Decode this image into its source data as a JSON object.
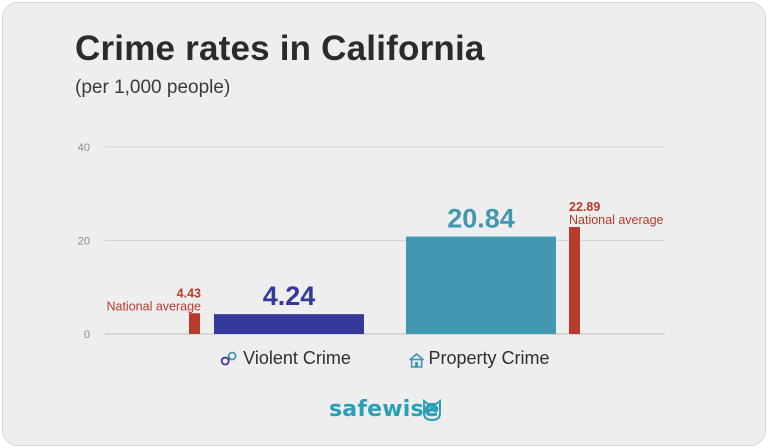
{
  "page": {
    "title": "Crime rates in California",
    "subtitle": "(per 1,000 people)",
    "brand": {
      "name": "safewise",
      "logo_icon": "owl-icon",
      "color": "#2a9fb5"
    }
  },
  "chart_data": {
    "type": "bar",
    "title": "Crime rates in California",
    "subtitle": "(per 1,000 people)",
    "xlabel": "",
    "ylabel": "",
    "ylim": [
      0,
      40
    ],
    "yticks": [
      0,
      20,
      40
    ],
    "grid": true,
    "categories": [
      {
        "label": "Violent Crime",
        "icon": "handcuffs-icon"
      },
      {
        "label": "Property Crime",
        "icon": "house-icon"
      }
    ],
    "series": [
      {
        "name": "National average",
        "values": [
          4.43,
          22.89
        ],
        "color": "#b83a2a"
      },
      {
        "name": "California",
        "values": [
          4.24,
          20.84
        ],
        "colors": [
          "#34399a",
          "#4298b1"
        ]
      }
    ],
    "data_labels": {
      "california": [
        "4.24",
        "20.84"
      ],
      "national": [
        "4.43",
        "22.89"
      ],
      "national_caption": "National average"
    }
  }
}
